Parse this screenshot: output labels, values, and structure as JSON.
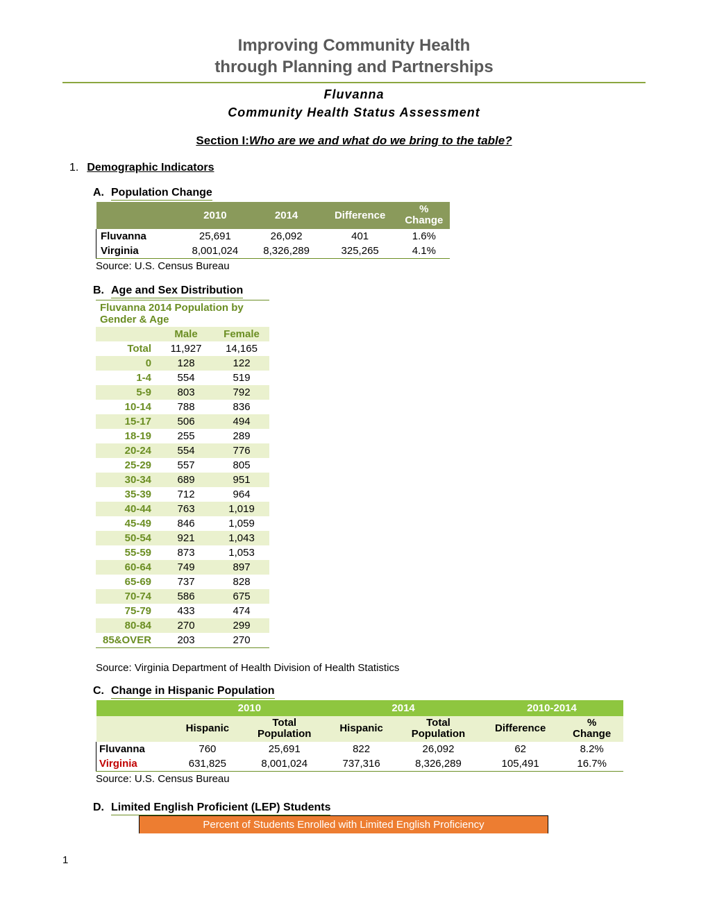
{
  "title_line1": "Improving Community Health",
  "title_line2": "through Planning and Partnerships",
  "subtitle_line1": "Fluvanna",
  "subtitle_line2": "Community Health Status Assessment",
  "section_label": "Section I:",
  "section_question": "Who are we and what do we bring to the table?",
  "item1_num": "1.",
  "item1_title": "Demographic Indicators",
  "A_letter": "A.",
  "A_title": "Population Change",
  "tableA": {
    "headers": [
      "",
      "2010",
      "2014",
      "Difference",
      "% Change"
    ],
    "rows": [
      {
        "label": "Fluvanna",
        "v": [
          "25,691",
          "26,092",
          "401",
          "1.6%"
        ]
      },
      {
        "label": "Virginia",
        "v": [
          "8,001,024",
          "8,326,289",
          "325,265",
          "4.1%"
        ]
      }
    ],
    "source": "Source: U.S. Census Bureau"
  },
  "B_letter": "B.",
  "B_title": "Age and Sex Distribution",
  "tableB": {
    "title": "Fluvanna 2014 Population by Gender & Age",
    "headers": [
      "",
      "Male",
      "Female"
    ],
    "rows": [
      {
        "age": "Total",
        "m": "11,927",
        "f": "14,165"
      },
      {
        "age": "0",
        "m": "128",
        "f": "122"
      },
      {
        "age": "1-4",
        "m": "554",
        "f": "519"
      },
      {
        "age": "5-9",
        "m": "803",
        "f": "792"
      },
      {
        "age": "10-14",
        "m": "788",
        "f": "836"
      },
      {
        "age": "15-17",
        "m": "506",
        "f": "494"
      },
      {
        "age": "18-19",
        "m": "255",
        "f": "289"
      },
      {
        "age": "20-24",
        "m": "554",
        "f": "776"
      },
      {
        "age": "25-29",
        "m": "557",
        "f": "805"
      },
      {
        "age": "30-34",
        "m": "689",
        "f": "951"
      },
      {
        "age": "35-39",
        "m": "712",
        "f": "964"
      },
      {
        "age": "40-44",
        "m": "763",
        "f": "1,019"
      },
      {
        "age": "45-49",
        "m": "846",
        "f": "1,059"
      },
      {
        "age": "50-54",
        "m": "921",
        "f": "1,043"
      },
      {
        "age": "55-59",
        "m": "873",
        "f": "1,053"
      },
      {
        "age": "60-64",
        "m": "749",
        "f": "897"
      },
      {
        "age": "65-69",
        "m": "737",
        "f": "828"
      },
      {
        "age": "70-74",
        "m": "586",
        "f": "675"
      },
      {
        "age": "75-79",
        "m": "433",
        "f": "474"
      },
      {
        "age": "80-84",
        "m": "270",
        "f": "299"
      },
      {
        "age": "85&OVER",
        "m": "203",
        "f": "270"
      }
    ],
    "source": "Source: Virginia Department of Health Division of Health Statistics"
  },
  "C_letter": "C.",
  "C_title": "Change in Hispanic Population",
  "tableC": {
    "year_headers": [
      "",
      "2010",
      "2014",
      "2010-2014"
    ],
    "sub_headers": [
      "",
      "Hispanic",
      "Total Population",
      "Hispanic",
      "Total Population",
      "Difference",
      "% Change"
    ],
    "rows": [
      {
        "label": "Fluvanna",
        "cls": "",
        "v": [
          "760",
          "25,691",
          "822",
          "26,092",
          "62",
          "8.2%"
        ]
      },
      {
        "label": "Virginia",
        "cls": "va",
        "v": [
          "631,825",
          "8,001,024",
          "737,316",
          "8,326,289",
          "105,491",
          "16.7%"
        ]
      }
    ],
    "source": "Source: U.S. Census Bureau"
  },
  "D_letter": "D.",
  "D_title": "Limited English Proficient (LEP) Students",
  "lep_header": "Percent of Students Enrolled with Limited English Proficiency",
  "page_number": "1",
  "colors": {
    "olive_header": "#8a9a5b",
    "olive_text": "#6b8e23",
    "green_header": "#8ec63f",
    "light_green": "#eaf1ce",
    "orange": "#ed7d31",
    "red": "#c00000",
    "gray_title": "#595959"
  }
}
